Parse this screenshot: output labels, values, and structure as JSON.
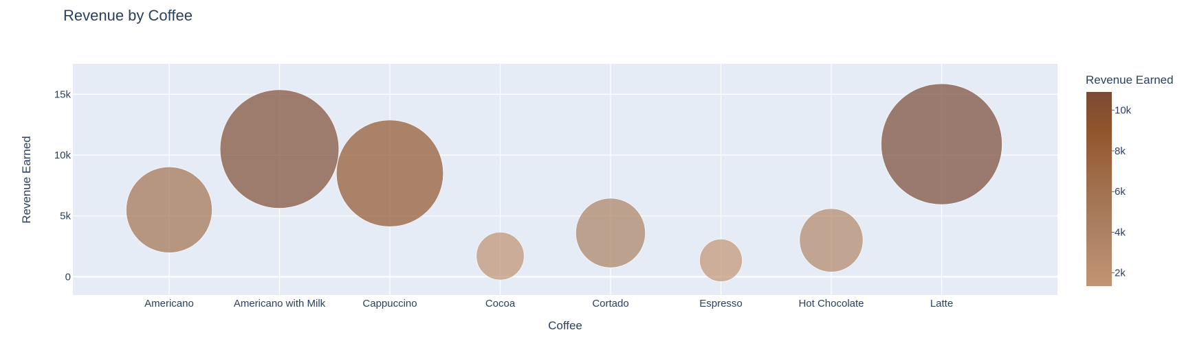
{
  "chart_data": {
    "type": "scatter",
    "title": "Revenue by Coffee",
    "xlabel": "Coffee",
    "ylabel": "Revenue Earned",
    "categories": [
      "Americano",
      "Americano with Milk",
      "Cappuccino",
      "Cocoa",
      "Cortado",
      "Espresso",
      "Hot Chocolate",
      "Latte"
    ],
    "values": [
      5500,
      10500,
      8500,
      1700,
      3600,
      1350,
      3000,
      10900
    ],
    "ylim": [
      -1500,
      17500
    ],
    "yticks": [
      0,
      5000,
      10000,
      15000
    ],
    "ytick_labels": [
      "0",
      "5k",
      "10k",
      "15k"
    ],
    "marker": "bubble sized by Revenue Earned",
    "colorbar": {
      "title": "Revenue Earned",
      "range": [
        1350,
        10900
      ],
      "ticks": [
        2000,
        4000,
        6000,
        8000,
        10000
      ],
      "tick_labels": [
        "2k",
        "4k",
        "6k",
        "8k",
        "10k"
      ],
      "colors": [
        "#c39474",
        "#aa8062",
        "#a06c4a",
        "#92552c",
        "#7b4a34"
      ]
    },
    "grid": true
  }
}
